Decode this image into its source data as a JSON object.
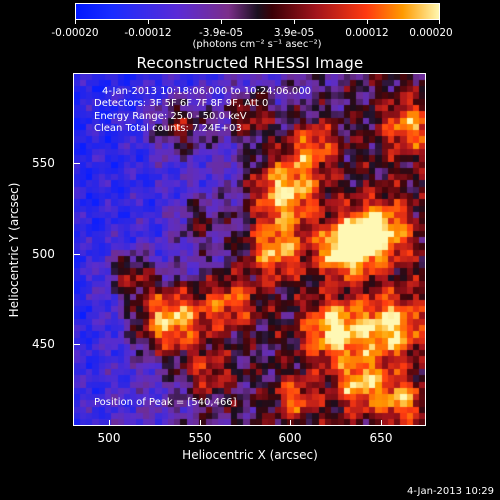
{
  "colorbar": {
    "tick_labels": [
      "-0.00020",
      "-0.00012",
      "-3.9e-05",
      "3.9e-05",
      "0.00012",
      "0.00020"
    ],
    "unit_label": "(photons cm⁻² s⁻¹ asec⁻²)",
    "colors": [
      "#0018ff",
      "#5a2bd6",
      "#7b2f8a",
      "#1a1020",
      "#a0141c",
      "#ff3a10",
      "#ff9a00",
      "#fff7b0"
    ]
  },
  "image": {
    "title": "Reconstructed RHESSI Image",
    "time_range": "4-Jan-2013 10:18:06.000 to 10:24:06.000",
    "detectors": "Detectors: 3F 5F 6F 7F 8F 9F, Att 0",
    "energy_range": "Energy Range: 25.0 - 50.0 keV",
    "method_counts": "Clean      Total counts: 7.24E+03",
    "peak_position": "Position of Peak = [540,466]"
  },
  "axes": {
    "xlabel": "Heliocentric X (arcsec)",
    "ylabel": "Heliocentric Y (arcsec)",
    "x_ticks": [
      "500",
      "550",
      "600",
      "650"
    ],
    "y_ticks": [
      "550",
      "500",
      "450"
    ],
    "xlim": [
      480,
      672
    ],
    "ylim": [
      403,
      595
    ]
  },
  "footer": {
    "timestamp": "4-Jan-2013 10:29"
  }
}
